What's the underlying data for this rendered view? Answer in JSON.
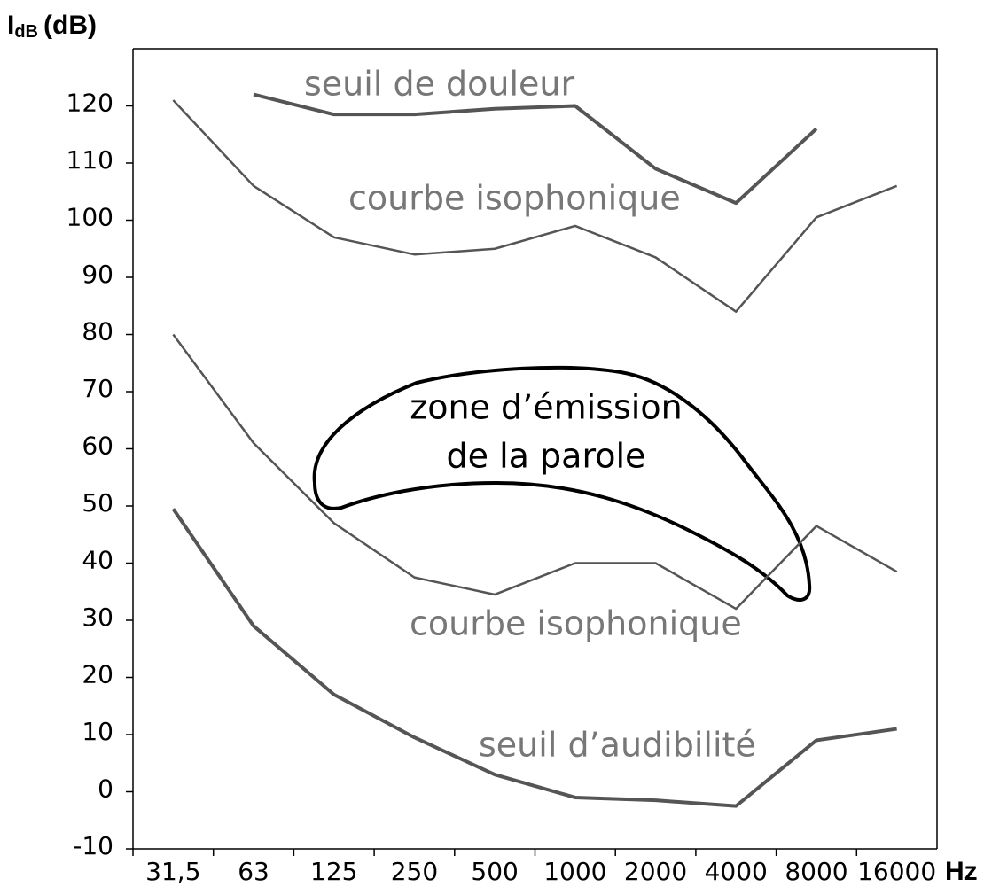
{
  "chart_data": {
    "type": "line",
    "y_label": {
      "main": "I",
      "sub": "dB",
      "unit": "(dB)"
    },
    "x_label": "Hz",
    "categories": [
      "31,5",
      "63",
      "125",
      "250",
      "500",
      "1000",
      "2000",
      "4000",
      "8000",
      "16000"
    ],
    "series": [
      {
        "name": "seuil de douleur",
        "color": "#555555",
        "width": 4,
        "values": [
          null,
          122,
          118.5,
          118.5,
          119.5,
          120,
          109,
          103,
          116,
          null
        ]
      },
      {
        "name": "courbe isophonique",
        "color": "#555555",
        "width": 2.5,
        "values": [
          121,
          106,
          97,
          94,
          95,
          99,
          93.5,
          84,
          100.5,
          106
        ]
      },
      {
        "name": "courbe isophonique",
        "color": "#555555",
        "width": 2.5,
        "values": [
          80,
          61,
          47,
          37.5,
          34.5,
          40,
          40,
          32,
          46.5,
          38.5
        ]
      },
      {
        "name": "seuil d’audibilité",
        "color": "#555555",
        "width": 4,
        "values": [
          49.5,
          29,
          17,
          9.5,
          3,
          -1,
          -1.5,
          -2.5,
          9,
          11
        ]
      }
    ],
    "annotations": [
      "zone d’émission",
      "de la parole"
    ],
    "ylim": [
      -10,
      130
    ],
    "yticks": [
      -10,
      0,
      10,
      20,
      30,
      40,
      50,
      60,
      70,
      80,
      90,
      100,
      110,
      120
    ]
  }
}
